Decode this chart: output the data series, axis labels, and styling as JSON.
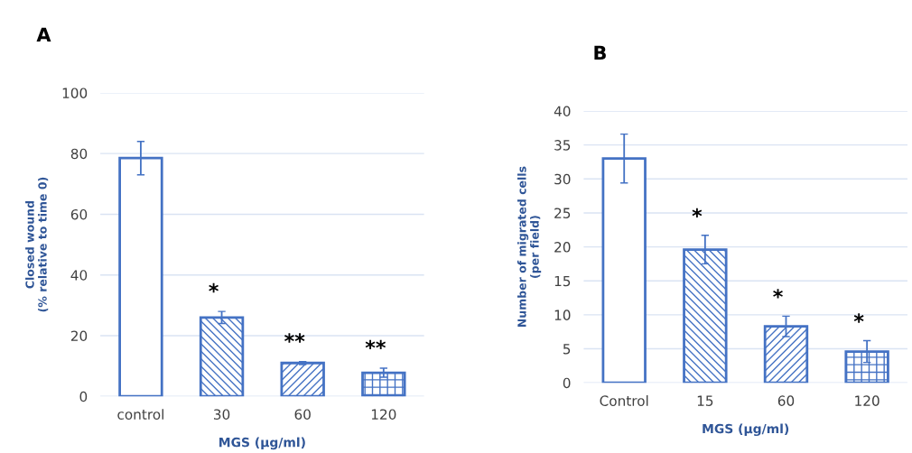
{
  "chart_data": [
    {
      "type": "bar",
      "title": "A",
      "xlabel": "MGS (µg/ml)",
      "ylabel": "Closed wound\n(% relative to time 0)",
      "categories": [
        "control",
        "30",
        "60",
        "120"
      ],
      "values": [
        78.5,
        26,
        11,
        7.8
      ],
      "errors": [
        5.5,
        2,
        0.5,
        1.5
      ],
      "color": "#4472c4",
      "ylim": [
        0,
        100
      ],
      "yticks": [
        0,
        20,
        40,
        60,
        80,
        100
      ],
      "grid": "y",
      "annotations": [
        "*",
        "**",
        "**"
      ]
    },
    {
      "type": "bar",
      "title": "B",
      "xlabel": "MGS (µg/ml)",
      "ylabel": "Number of migrated cells\n(per field)",
      "categories": [
        "Control",
        "15",
        "60",
        "120"
      ],
      "values": [
        33,
        19.6,
        8.3,
        4.6
      ],
      "errors": [
        3.6,
        2.1,
        1.5,
        1.6
      ],
      "color": "#4472c4",
      "ylim": [
        0,
        40
      ],
      "yticks": [
        0,
        5,
        10,
        15,
        20,
        25,
        30,
        35,
        40
      ],
      "grid": "y",
      "annotations": [
        "*",
        "*",
        "*"
      ]
    }
  ]
}
